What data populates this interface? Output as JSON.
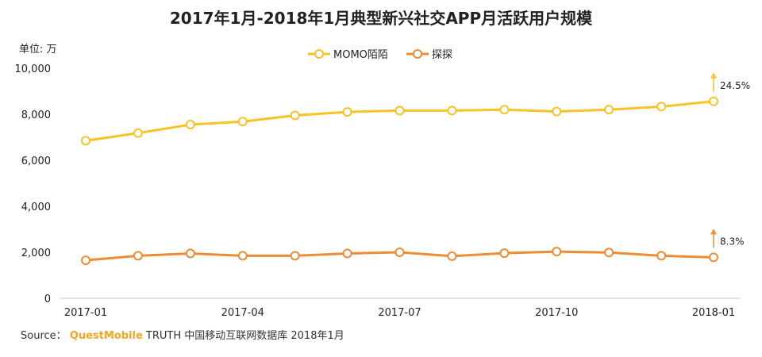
{
  "chart_data": {
    "type": "line",
    "title": "2017年1月-2018年1月典型新兴社交APP月活跃用户规模",
    "unit_label": "单位: 万",
    "x": [
      "2017-01",
      "2017-02",
      "2017-03",
      "2017-04",
      "2017-05",
      "2017-06",
      "2017-07",
      "2017-08",
      "2017-09",
      "2017-10",
      "2017-11",
      "2017-12",
      "2018-01"
    ],
    "x_tick_labels": [
      "2017-01",
      "2017-04",
      "2017-07",
      "2017-10",
      "2018-01"
    ],
    "y_ticks": [
      "0",
      "2,000",
      "4,000",
      "6,000",
      "8,000",
      "10,000"
    ],
    "ylim": [
      0,
      10000
    ],
    "grid": false,
    "legend_position": "top-center",
    "series": [
      {
        "name": "MOMO陌陌",
        "color": "#f7c325",
        "values": [
          6850,
          7180,
          7550,
          7680,
          7950,
          8100,
          8160,
          8160,
          8200,
          8120,
          8200,
          8330,
          8560
        ],
        "annotation": "24.5%"
      },
      {
        "name": "探探",
        "color": "#ef8c33",
        "values": [
          1650,
          1850,
          1950,
          1850,
          1850,
          1950,
          2000,
          1830,
          1960,
          2030,
          1990,
          1850,
          1780
        ],
        "annotation": "8.3%"
      }
    ]
  },
  "source": {
    "prefix": "Source：",
    "brand": "QuestMobile",
    "rest": "TRUTH 中国移动互联网数据库 2018年1月"
  }
}
